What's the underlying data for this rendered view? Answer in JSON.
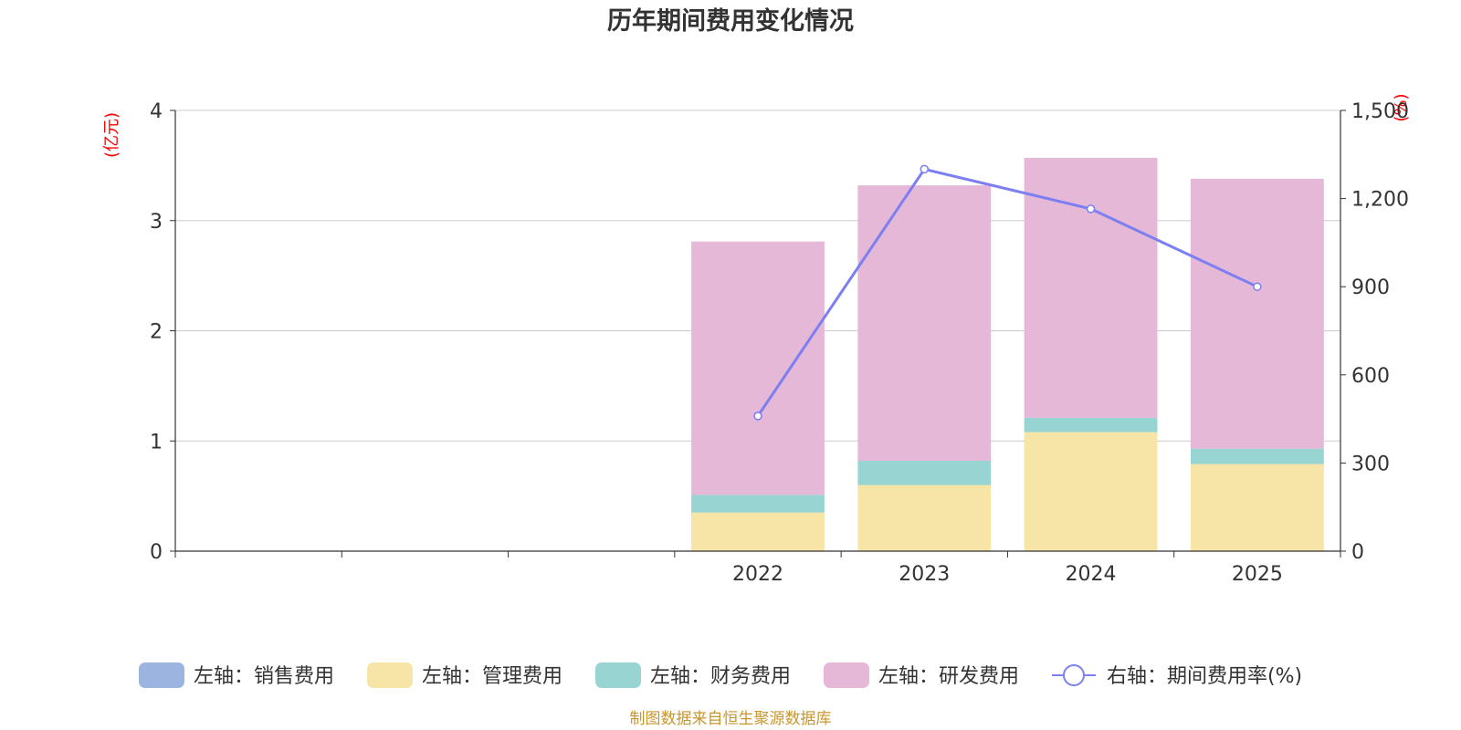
{
  "title": "历年期间费用变化情况",
  "left_unit": "(亿元)",
  "right_unit": "(%)",
  "source": "制图数据来自恒生聚源数据库",
  "colors": {
    "sales": "#9bb5e0",
    "admin": "#f6e5a6",
    "finance": "#98d4d2",
    "rd": "#e6b8d8",
    "line": "#7b7ff0",
    "grid": "#cccccc",
    "axis": "#333333"
  },
  "chart_data": {
    "type": "bar",
    "stacked": true,
    "categories": [
      "",
      "",
      "",
      "2022",
      "2023",
      "2024",
      "2025"
    ],
    "series": [
      {
        "key": "sales",
        "name": "左轴：销售费用",
        "axis": "left",
        "values": [
          null,
          null,
          null,
          0,
          0,
          0,
          0
        ]
      },
      {
        "key": "admin",
        "name": "左轴：管理费用",
        "axis": "left",
        "values": [
          null,
          null,
          null,
          0.35,
          0.6,
          1.08,
          0.79
        ]
      },
      {
        "key": "finance",
        "name": "左轴：财务费用",
        "axis": "left",
        "values": [
          null,
          null,
          null,
          0.16,
          0.22,
          0.13,
          0.14
        ]
      },
      {
        "key": "rd",
        "name": "左轴：研发费用",
        "axis": "left",
        "values": [
          null,
          null,
          null,
          2.3,
          2.5,
          2.36,
          2.45
        ]
      },
      {
        "key": "line",
        "name": "右轴：期间费用率(%)",
        "axis": "right",
        "type": "line",
        "values": [
          null,
          null,
          null,
          460,
          1300,
          1165,
          900
        ]
      }
    ],
    "left_axis": {
      "min": 0,
      "max": 4,
      "ticks": [
        0,
        1,
        2,
        3,
        4
      ],
      "tick_labels": [
        "0",
        "1",
        "2",
        "3",
        "4"
      ]
    },
    "right_axis": {
      "min": 0,
      "max": 1500,
      "ticks": [
        0,
        300,
        600,
        900,
        1200,
        1500
      ],
      "tick_labels": [
        "0",
        "300",
        "600",
        "900",
        "1,200",
        "1,500"
      ]
    },
    "legend_position": "bottom"
  }
}
